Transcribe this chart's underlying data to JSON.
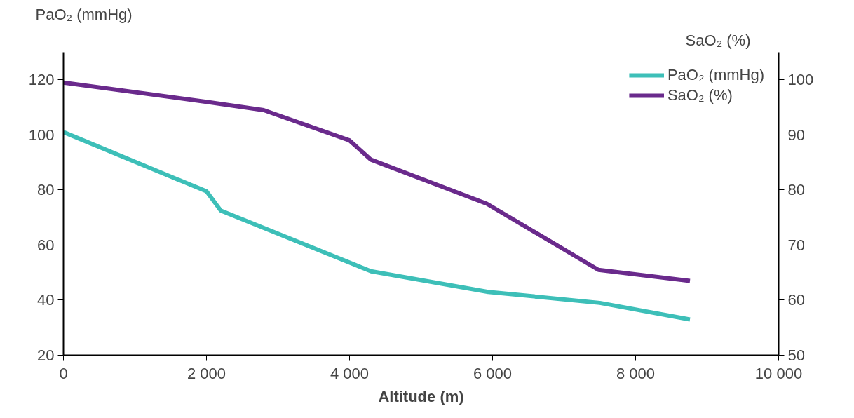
{
  "chart_data": {
    "type": "line",
    "xlabel": "Altitude (m)",
    "ylabel": "PaO₂ (mmHg)",
    "y2label": "SaO₂ (%)",
    "x": [
      0,
      2000,
      2200,
      4300,
      5940,
      7500,
      8760
    ],
    "series": [
      {
        "name": "PaO₂ (mmHg)",
        "color": "#3dbfb8",
        "values": [
          101,
          79.5,
          72.5,
          50.5,
          43,
          39,
          33
        ]
      },
      {
        "name": "SaO₂ (%)",
        "color": "#6a2a8c",
        "axis": "y2",
        "x": [
          0,
          2000,
          2800,
          4000,
          4300,
          5920,
          7480,
          8760
        ],
        "values": [
          99.5,
          96,
          94.5,
          89,
          85.5,
          77.5,
          65.5,
          63.5
        ]
      }
    ],
    "xlim": [
      0,
      10000
    ],
    "xticks": [
      0,
      {
        "value": 2000,
        "label": "2 000"
      },
      {
        "value": 4000,
        "label": "4 000"
      },
      {
        "value": 6000,
        "label": "6 000"
      },
      {
        "value": 8000,
        "label": "8 000"
      },
      {
        "value": 10000,
        "label": "10 000"
      }
    ],
    "ylim": [
      20,
      130
    ],
    "yticks": [
      20,
      40,
      60,
      80,
      100,
      120
    ],
    "y2lim": [
      50,
      105
    ],
    "y2ticks": [
      50,
      60,
      70,
      80,
      90,
      100
    ],
    "grid": false,
    "legend": "top right",
    "marker": "none",
    "line_style": "solid"
  }
}
